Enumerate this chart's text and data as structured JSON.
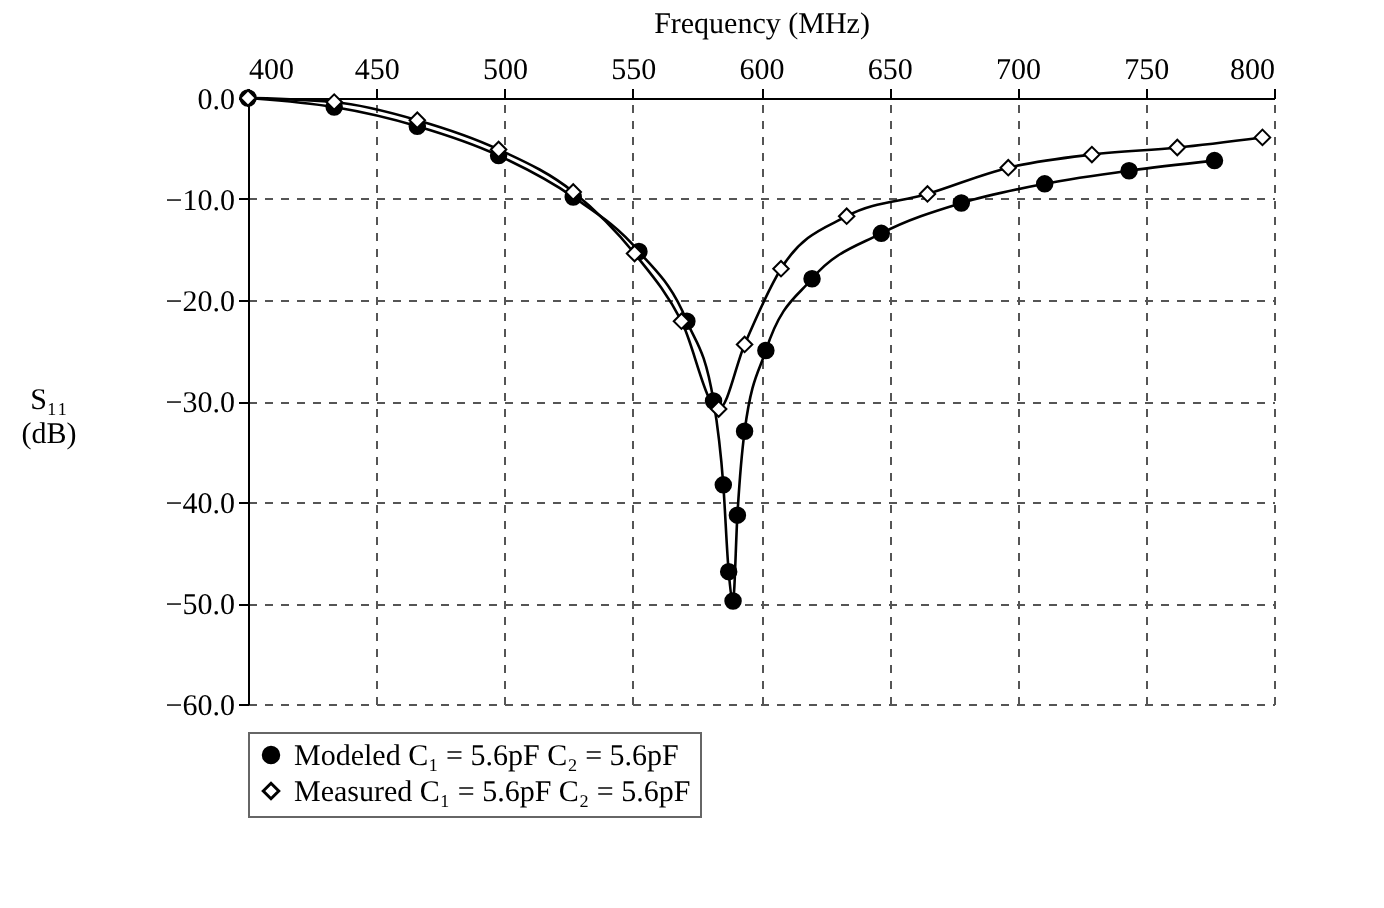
{
  "chart_data": {
    "type": "line",
    "xlabel": "Frequency (MHz)",
    "ylabel": "S₁₁ (dB)",
    "xlim": [
      400,
      800
    ],
    "xticks": [
      400,
      450,
      500,
      550,
      600,
      650,
      700,
      750,
      800
    ],
    "ylim": [
      -60,
      0
    ],
    "yticks": [
      {
        "value": 0,
        "label": "0.0"
      },
      {
        "value": -10,
        "label": "−10.0"
      },
      {
        "value": -20,
        "label": "−20.0"
      },
      {
        "value": -30,
        "label": "−30.0"
      },
      {
        "value": -40,
        "label": "−40.0"
      },
      {
        "value": -50,
        "label": "−50.0"
      },
      {
        "value": -60,
        "label": "−60.0"
      }
    ],
    "grid": true,
    "legend": "bottom",
    "series": [
      {
        "name": "Modeled C₁ = 5.6pF C₂ = 5.6pF",
        "color": "#000000",
        "marker": "circle",
        "x": [
          400,
          433.6,
          466,
          497.7,
          526.8,
          552.4,
          571.1,
          581.5,
          585.3,
          587.4,
          589.1,
          590.8,
          593.6,
          601.9,
          619.9,
          646.9,
          678.1,
          710.6,
          743.5,
          776.8
        ],
        "values": [
          0,
          -0.9,
          -2.8,
          -5.7,
          -9.8,
          -15.2,
          -22.1,
          -30.0,
          -38.3,
          -46.9,
          -49.8,
          -41.3,
          -33.0,
          -25.0,
          -17.9,
          -13.4,
          -10.4,
          -8.5,
          -7.2,
          -6.2
        ]
      },
      {
        "name": "Measured C₁ = 5.6pF C₂ = 5.6pF",
        "color": "#000000",
        "marker": "diamond",
        "x": [
          400,
          433.6,
          466,
          497.7,
          526.8,
          550.7,
          569.0,
          583.5,
          593.6,
          607.8,
          633.4,
          664.9,
          696.4,
          729,
          762.3,
          795.5
        ],
        "values": [
          0,
          -0.4,
          -2.2,
          -5.1,
          -9.3,
          -15.4,
          -22.1,
          -30.8,
          -24.4,
          -16.9,
          -11.7,
          -9.5,
          -6.9,
          -5.6,
          -4.9,
          -3.9
        ]
      }
    ]
  }
}
